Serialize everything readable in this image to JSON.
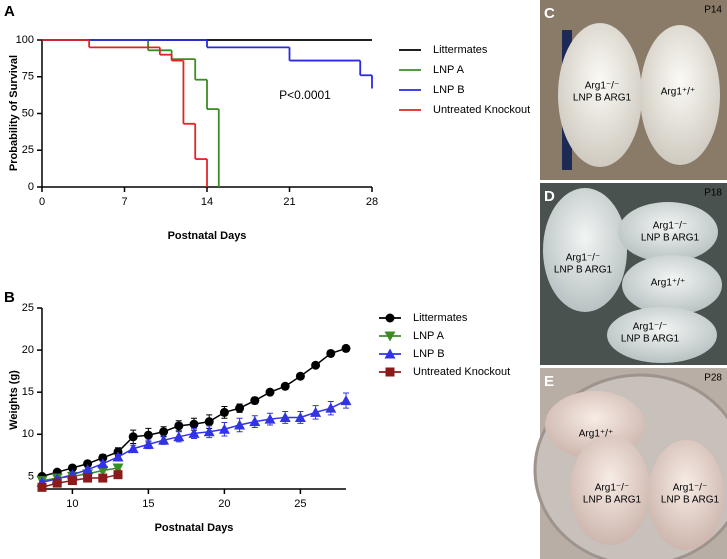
{
  "chart_data": [
    {
      "type": "step",
      "panel": "A",
      "ylabel": "Probability of Survival",
      "xlabel": "Postnatal Days",
      "annotation": "P<0.0001",
      "xlim": [
        0,
        28
      ],
      "xticks": [
        0,
        7,
        14,
        21,
        28
      ],
      "ylim": [
        0,
        100
      ],
      "yticks": [
        0,
        25,
        50,
        75,
        100
      ],
      "grid": false,
      "series": [
        {
          "name": "Littermates",
          "color": "#000000",
          "x": [
            0,
            28
          ],
          "values": [
            100,
            100
          ]
        },
        {
          "name": "LNP A",
          "color": "#3d8b25",
          "x": [
            0,
            9,
            11,
            13,
            14,
            15
          ],
          "values": [
            100,
            93,
            87,
            73,
            53,
            0
          ]
        },
        {
          "name": "LNP B",
          "color": "#2a2ae0",
          "x": [
            0,
            14,
            21,
            27,
            28
          ],
          "values": [
            100,
            95,
            86,
            76,
            67
          ]
        },
        {
          "name": "Untreated Knockout",
          "color": "#e02424",
          "x": [
            0,
            4,
            10,
            11,
            12,
            13,
            14
          ],
          "values": [
            100,
            95,
            90,
            86,
            43,
            19,
            0
          ]
        }
      ]
    },
    {
      "type": "line",
      "panel": "B",
      "ylabel": "Weights (g)",
      "xlabel": "Postnatal Days",
      "xlim": [
        8,
        28
      ],
      "xticks": [
        10,
        15,
        20,
        25
      ],
      "ylim": [
        3.5,
        25
      ],
      "yticks": [
        5,
        10,
        15,
        20,
        25
      ],
      "grid": false,
      "series": [
        {
          "name": "Littermates",
          "color": "#000000",
          "marker": "circle",
          "x": [
            8,
            9,
            10,
            11,
            12,
            13,
            14,
            15,
            16,
            17,
            18,
            19,
            20,
            21,
            22,
            23,
            24,
            25,
            26,
            27,
            28
          ],
          "values": [
            5,
            5.5,
            6,
            6.5,
            7.2,
            7.9,
            9.7,
            9.9,
            10.3,
            11,
            11.2,
            11.5,
            12.6,
            13.1,
            14,
            15,
            15.7,
            16.9,
            18.2,
            19.6,
            20.2
          ],
          "errors": [
            0.3,
            0.3,
            0.3,
            0.3,
            0.4,
            0.5,
            0.8,
            0.8,
            0.6,
            0.6,
            0.7,
            0.8,
            0.7,
            0.5,
            0.4,
            0.3,
            0.3,
            0.3,
            0.3,
            0.3,
            0.3
          ]
        },
        {
          "name": "LNP A",
          "color": "#3d8b25",
          "marker": "down",
          "x": [
            8,
            9,
            10,
            11,
            12,
            13
          ],
          "values": [
            4.5,
            4.8,
            5,
            5.3,
            5.7,
            6
          ],
          "errors": [
            0.2,
            0.2,
            0.2,
            0.2,
            0.2,
            0.2
          ]
        },
        {
          "name": "LNP B",
          "color": "#3333e6",
          "marker": "up",
          "x": [
            8,
            9,
            10,
            11,
            12,
            13,
            14,
            15,
            16,
            17,
            18,
            19,
            20,
            21,
            22,
            23,
            24,
            25,
            26,
            27,
            28
          ],
          "values": [
            4.3,
            4.7,
            5.2,
            5.8,
            6.5,
            7.3,
            8.3,
            8.8,
            9.3,
            9.7,
            10.1,
            10.3,
            10.6,
            11.1,
            11.5,
            11.8,
            12,
            12,
            12.6,
            13.1,
            14
          ],
          "errors": [
            0.2,
            0.2,
            0.2,
            0.2,
            0.3,
            0.3,
            0.4,
            0.5,
            0.5,
            0.6,
            0.6,
            0.7,
            0.8,
            0.8,
            0.7,
            0.7,
            0.7,
            0.7,
            0.8,
            0.8,
            0.9
          ]
        },
        {
          "name": "Untreated Knockout",
          "color": "#8b1a1a",
          "marker": "square",
          "x": [
            8,
            9,
            10,
            11,
            12,
            13
          ],
          "values": [
            3.7,
            4.2,
            4.5,
            4.8,
            4.8,
            5.2
          ],
          "errors": [
            0.3,
            0.3,
            0.2,
            0.2,
            0.2,
            0.2
          ]
        }
      ]
    }
  ],
  "photos": [
    {
      "panel": "C",
      "age": "P14",
      "labels": [
        [
          "Arg1⁻/⁻",
          "LNP B ARG1"
        ],
        [
          "Arg1⁺/⁺"
        ]
      ]
    },
    {
      "panel": "D",
      "age": "P18",
      "labels": [
        [
          "Arg1⁻/⁻",
          "LNP B ARG1"
        ],
        [
          "Arg1⁻/⁻",
          "LNP B ARG1"
        ],
        [
          "Arg1⁺/⁺"
        ],
        [
          "Arg1⁻/⁻",
          "LNP B ARG1"
        ]
      ]
    },
    {
      "panel": "E",
      "age": "P28",
      "labels": [
        [
          "Arg1⁺/⁺"
        ],
        [
          "Arg1⁻/⁻",
          "LNP B ARG1"
        ],
        [
          "Arg1⁻/⁻",
          "LNP B ARG1"
        ]
      ]
    }
  ]
}
